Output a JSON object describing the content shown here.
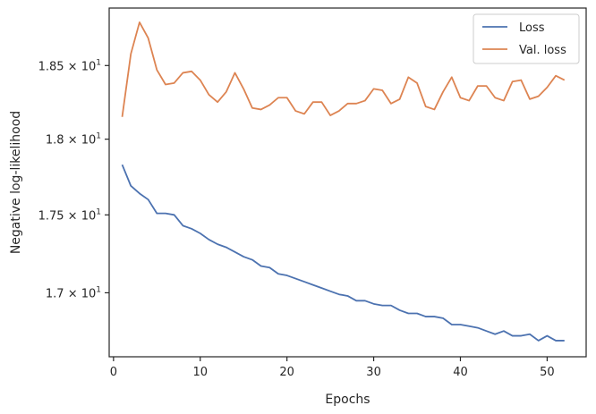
{
  "chart_data": {
    "type": "line",
    "xlabel": "Epochs",
    "ylabel": "Negative log-likelihood",
    "xlim": [
      -0.5,
      54.5
    ],
    "ylim": [
      16.6,
      18.9
    ],
    "yscale": "log",
    "x_ticks": [
      0,
      10,
      20,
      30,
      40,
      50
    ],
    "x_tick_labels": [
      "0",
      "10",
      "20",
      "30",
      "40",
      "50"
    ],
    "y_ticks": [
      17.0,
      17.5,
      18.0,
      18.5
    ],
    "y_tick_labels": [
      {
        "mantissa": "1.7",
        "times": "×",
        "base": "10",
        "exp": "1"
      },
      {
        "mantissa": "1.75",
        "times": "×",
        "base": "10",
        "exp": "1"
      },
      {
        "mantissa": "1.8",
        "times": "×",
        "base": "10",
        "exp": "1"
      },
      {
        "mantissa": "1.85",
        "times": "×",
        "base": "10",
        "exp": "1"
      }
    ],
    "grid": false,
    "legend_position": "top-right",
    "x": [
      1,
      2,
      3,
      4,
      5,
      6,
      7,
      8,
      9,
      10,
      11,
      12,
      13,
      14,
      15,
      16,
      17,
      18,
      19,
      20,
      21,
      22,
      23,
      24,
      25,
      26,
      27,
      28,
      29,
      30,
      31,
      32,
      33,
      34,
      35,
      36,
      37,
      38,
      39,
      40,
      41,
      42,
      43,
      44,
      45,
      46,
      47,
      48,
      49,
      50,
      51,
      52
    ],
    "series": [
      {
        "name": "Loss",
        "color": "#4c72b0",
        "values": [
          17.83,
          17.69,
          17.64,
          17.6,
          17.51,
          17.51,
          17.5,
          17.43,
          17.41,
          17.38,
          17.34,
          17.31,
          17.29,
          17.26,
          17.23,
          17.21,
          17.17,
          17.16,
          17.12,
          17.11,
          17.09,
          17.07,
          17.05,
          17.03,
          17.01,
          16.99,
          16.98,
          16.95,
          16.95,
          16.93,
          16.92,
          16.92,
          16.89,
          16.87,
          16.87,
          16.85,
          16.85,
          16.84,
          16.8,
          16.8,
          16.79,
          16.78,
          16.76,
          16.74,
          16.76,
          16.73,
          16.73,
          16.74,
          16.7,
          16.73,
          16.7,
          16.7
        ]
      },
      {
        "name": "Val. loss",
        "color": "#dd8452",
        "values": [
          18.15,
          18.58,
          18.8,
          18.69,
          18.47,
          18.37,
          18.38,
          18.45,
          18.46,
          18.4,
          18.3,
          18.25,
          18.32,
          18.45,
          18.34,
          18.21,
          18.2,
          18.23,
          18.28,
          18.28,
          18.19,
          18.17,
          18.25,
          18.25,
          18.16,
          18.19,
          18.24,
          18.24,
          18.26,
          18.34,
          18.33,
          18.24,
          18.27,
          18.42,
          18.38,
          18.22,
          18.2,
          18.32,
          18.42,
          18.28,
          18.26,
          18.36,
          18.36,
          18.28,
          18.26,
          18.39,
          18.4,
          18.27,
          18.29,
          18.35,
          18.43,
          18.4
        ]
      }
    ]
  }
}
